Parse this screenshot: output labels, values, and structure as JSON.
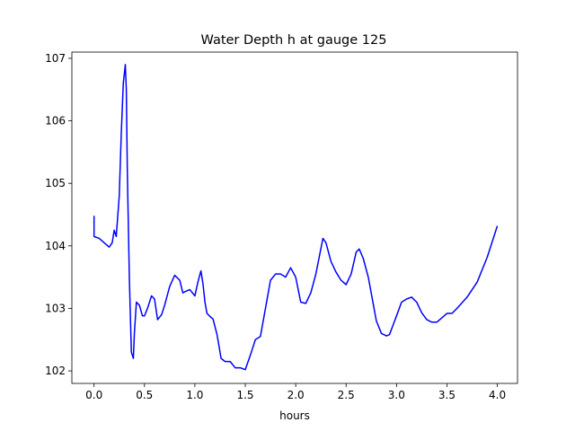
{
  "chart_data": {
    "type": "line",
    "title": "Water Depth h at gauge 125",
    "xlabel": "hours",
    "ylabel": "",
    "xlim": [
      -0.22,
      4.2
    ],
    "ylim": [
      101.8,
      107.1
    ],
    "x_ticks": [
      0.0,
      0.5,
      1.0,
      1.5,
      2.0,
      2.5,
      3.0,
      3.5,
      4.0
    ],
    "x_tick_labels": [
      "0.0",
      "0.5",
      "1.0",
      "1.5",
      "2.0",
      "2.5",
      "3.0",
      "3.5",
      "4.0"
    ],
    "y_ticks": [
      102,
      103,
      104,
      105,
      106,
      107
    ],
    "y_tick_labels": [
      "102",
      "103",
      "104",
      "105",
      "106",
      "107"
    ],
    "grid": false,
    "series": [
      {
        "color": "#0000ff",
        "x": [
          0.0,
          0.0,
          0.05,
          0.1,
          0.15,
          0.18,
          0.2,
          0.22,
          0.25,
          0.27,
          0.29,
          0.31,
          0.32,
          0.33,
          0.35,
          0.37,
          0.39,
          0.4,
          0.42,
          0.45,
          0.48,
          0.5,
          0.53,
          0.57,
          0.6,
          0.63,
          0.67,
          0.7,
          0.75,
          0.8,
          0.85,
          0.88,
          0.92,
          0.95,
          1.0,
          1.03,
          1.06,
          1.08,
          1.1,
          1.12,
          1.15,
          1.18,
          1.22,
          1.26,
          1.3,
          1.35,
          1.4,
          1.45,
          1.5,
          1.55,
          1.6,
          1.65,
          1.7,
          1.75,
          1.8,
          1.85,
          1.9,
          1.95,
          2.0,
          2.05,
          2.1,
          2.15,
          2.2,
          2.27,
          2.3,
          2.35,
          2.4,
          2.45,
          2.5,
          2.55,
          2.6,
          2.63,
          2.67,
          2.72,
          2.8,
          2.85,
          2.9,
          2.93,
          2.97,
          3.0,
          3.05,
          3.1,
          3.15,
          3.2,
          3.25,
          3.3,
          3.35,
          3.4,
          3.45,
          3.5,
          3.55,
          3.6,
          3.7,
          3.8,
          3.9,
          4.0
        ],
        "y": [
          104.48,
          104.15,
          104.12,
          104.05,
          103.98,
          104.05,
          104.25,
          104.15,
          104.8,
          105.8,
          106.6,
          106.9,
          106.5,
          105.2,
          103.5,
          102.3,
          102.2,
          102.6,
          103.1,
          103.05,
          102.88,
          102.88,
          103.0,
          103.2,
          103.15,
          102.82,
          102.9,
          103.05,
          103.35,
          103.53,
          103.45,
          103.25,
          103.28,
          103.3,
          103.2,
          103.42,
          103.6,
          103.4,
          103.1,
          102.92,
          102.87,
          102.83,
          102.58,
          102.2,
          102.15,
          102.15,
          102.05,
          102.05,
          102.02,
          102.25,
          102.5,
          102.55,
          103.0,
          103.45,
          103.55,
          103.55,
          103.5,
          103.65,
          103.5,
          103.1,
          103.08,
          103.25,
          103.55,
          104.12,
          104.05,
          103.75,
          103.58,
          103.45,
          103.38,
          103.55,
          103.9,
          103.95,
          103.8,
          103.5,
          102.8,
          102.6,
          102.56,
          102.58,
          102.75,
          102.88,
          103.1,
          103.15,
          103.18,
          103.1,
          102.93,
          102.82,
          102.78,
          102.78,
          102.85,
          102.92,
          102.92,
          103.0,
          103.18,
          103.42,
          103.82,
          104.32
        ]
      }
    ]
  }
}
